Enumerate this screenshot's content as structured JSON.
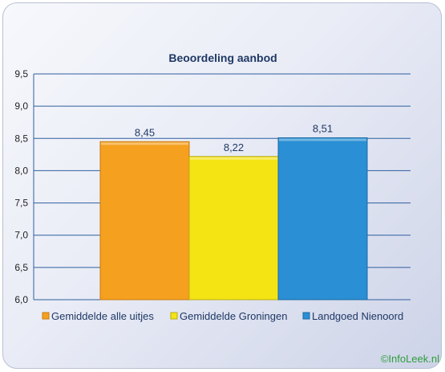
{
  "chart_data": {
    "type": "bar",
    "title": "Beoordeling aanbod",
    "categories": [
      "Gemiddelde alle uitjes",
      "Gemiddelde Groningen",
      "Landgoed Nienoord"
    ],
    "values": [
      8.45,
      8.22,
      8.51
    ],
    "value_labels": [
      "8,45",
      "8,22",
      "8,51"
    ],
    "ylim": [
      6.0,
      9.5
    ],
    "yticks": [
      6.0,
      6.5,
      7.0,
      7.5,
      8.0,
      8.5,
      9.0,
      9.5
    ],
    "ytick_labels": [
      "6,0",
      "6,5",
      "7,0",
      "7,5",
      "8,0",
      "8,5",
      "9,0",
      "9,5"
    ],
    "colors": [
      "#f5a01e",
      "#f5e414",
      "#2a8fd4"
    ],
    "edge_colors": [
      "#c67a12",
      "#b8ac10",
      "#1c6aa3"
    ],
    "grid": true,
    "legend_position": "bottom"
  },
  "watermark": "©InfoLeek.nl"
}
